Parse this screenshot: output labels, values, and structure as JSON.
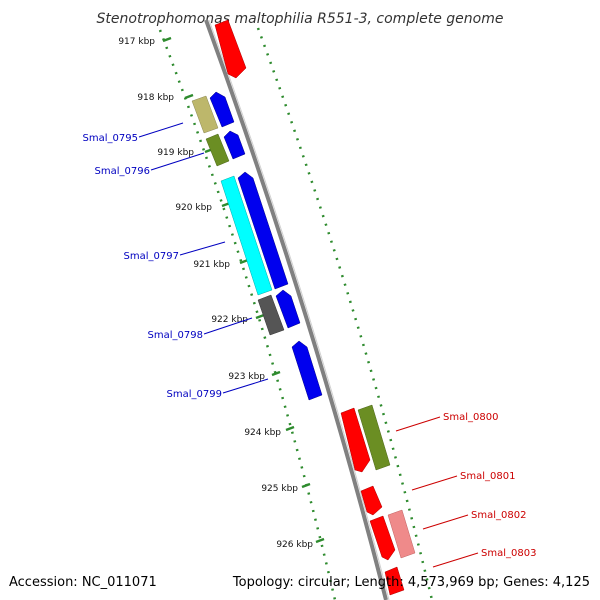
{
  "title": "Stenotrophomonas maltophilia R551-3, complete genome",
  "footer": {
    "accession": "Accession: NC_011071",
    "summary": "Topology: circular; Length: 4,573,969 bp; Genes: 4,125"
  },
  "kbp_labels": [
    "917 kbp",
    "918 kbp",
    "919 kbp",
    "920 kbp",
    "921 kbp",
    "922 kbp",
    "923 kbp",
    "924 kbp",
    "925 kbp",
    "926 kbp"
  ],
  "gene_labels": {
    "left": [
      "Smal_0795",
      "Smal_0796",
      "Smal_0797",
      "Smal_0798",
      "Smal_0799"
    ],
    "right": [
      "Smal_0800",
      "Smal_0801",
      "Smal_0802",
      "Smal_0803"
    ]
  },
  "colors": {
    "backbone": "#808080",
    "ticks": "#2e8b2e",
    "left_label": "#0000c0",
    "right_label": "#cc0000",
    "red": "#ff0000",
    "light_red": "#ef8a8a",
    "blue": "#0000ee",
    "cyan": "#00ffff",
    "khaki": "#bdb76b",
    "olive": "#6b8e23",
    "dark_gray": "#555555"
  }
}
